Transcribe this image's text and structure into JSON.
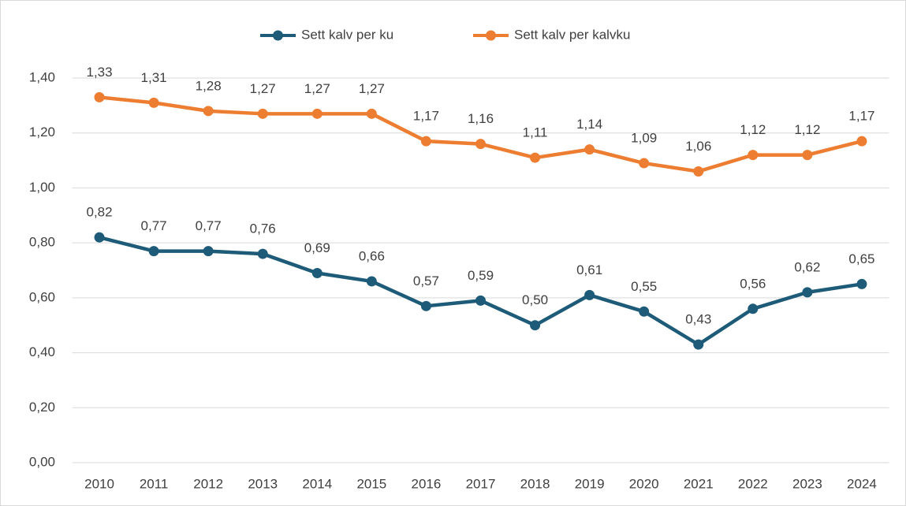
{
  "chart_data": {
    "type": "line",
    "categories": [
      "2010",
      "2011",
      "2012",
      "2013",
      "2014",
      "2015",
      "2016",
      "2017",
      "2018",
      "2019",
      "2020",
      "2021",
      "2022",
      "2023",
      "2024"
    ],
    "series": [
      {
        "name": "Sett kalv per ku",
        "color": "#1d5b79",
        "values": [
          0.82,
          0.77,
          0.77,
          0.76,
          0.69,
          0.66,
          0.57,
          0.59,
          0.5,
          0.61,
          0.55,
          0.43,
          0.56,
          0.62,
          0.65
        ],
        "value_labels": [
          "0,82",
          "0,77",
          "0,77",
          "0,76",
          "0,69",
          "0,66",
          "0,57",
          "0,59",
          "0,50",
          "0,61",
          "0,55",
          "0,43",
          "0,56",
          "0,62",
          "0,65"
        ]
      },
      {
        "name": "Sett kalv per kalvku",
        "color": "#ed7d31",
        "values": [
          1.33,
          1.31,
          1.28,
          1.27,
          1.27,
          1.27,
          1.17,
          1.16,
          1.11,
          1.14,
          1.09,
          1.06,
          1.12,
          1.12,
          1.17
        ],
        "value_labels": [
          "1,33",
          "1,31",
          "1,28",
          "1,27",
          "1,27",
          "1,27",
          "1,17",
          "1,16",
          "1,11",
          "1,14",
          "1,09",
          "1,06",
          "1,12",
          "1,12",
          "1,17"
        ]
      }
    ],
    "ylim": [
      0,
      1.4
    ],
    "yticks": [
      {
        "value": 0,
        "label": "0,00"
      },
      {
        "value": 0.2,
        "label": "0,20"
      },
      {
        "value": 0.4,
        "label": "0,40"
      },
      {
        "value": 0.6,
        "label": "0,60"
      },
      {
        "value": 0.8,
        "label": "0,80"
      },
      {
        "value": 1.0,
        "label": "1,00"
      },
      {
        "value": 1.2,
        "label": "1,20"
      },
      {
        "value": 1.4,
        "label": "1,40"
      }
    ],
    "grid": true,
    "legend": "top"
  }
}
